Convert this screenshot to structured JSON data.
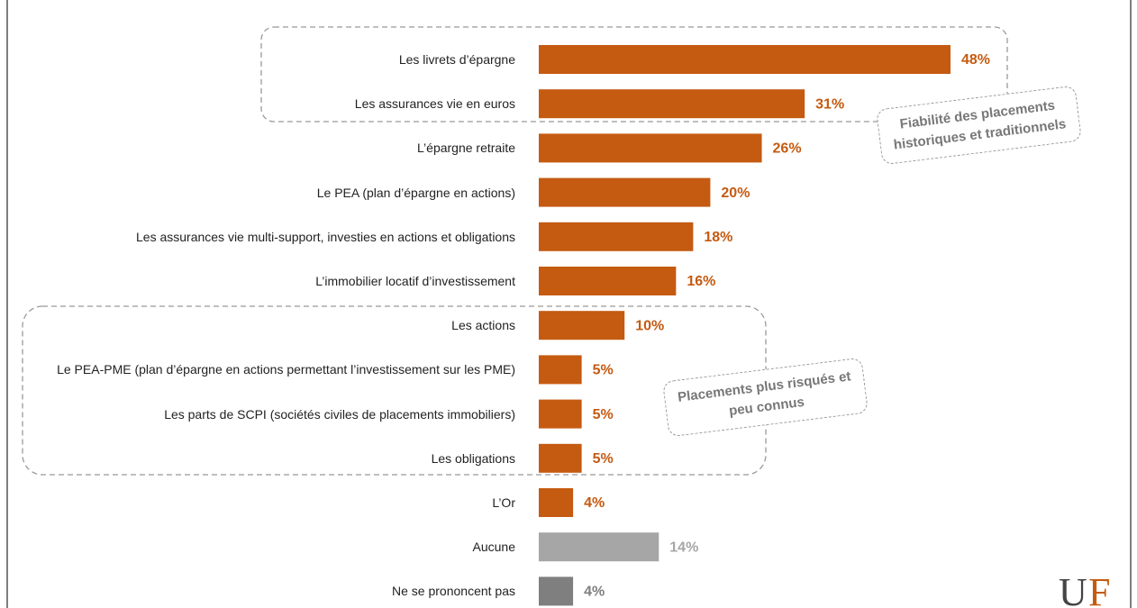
{
  "chart_data": {
    "type": "bar",
    "orientation": "horizontal",
    "categories": [
      "Les livrets d’épargne",
      "Les assurances vie en euros",
      "L’épargne retraite",
      "Le PEA (plan d’épargne en actions)",
      "Les assurances vie multi-support, investies en actions et obligations",
      "L’immobilier locatif d’investissement",
      "Les actions",
      "Le PEA-PME (plan d’épargne en actions permettant l’investissement sur les PME)",
      "Les parts de SCPI (sociétés civiles de placements immobiliers)",
      "Les obligations",
      "L’Or",
      "Aucune",
      "Ne se prononcent pas"
    ],
    "values": [
      48,
      31,
      26,
      20,
      18,
      16,
      10,
      5,
      5,
      5,
      4,
      14,
      4
    ],
    "value_labels": [
      "48%",
      "31%",
      "26%",
      "20%",
      "18%",
      "16%",
      "10%",
      "5%",
      "5%",
      "5%",
      "4%",
      "14%",
      "4%"
    ],
    "colors": [
      "#c55a11",
      "#c55a11",
      "#c55a11",
      "#c55a11",
      "#c55a11",
      "#c55a11",
      "#c55a11",
      "#c55a11",
      "#c55a11",
      "#c55a11",
      "#c55a11",
      "#a6a6a6",
      "#7f7f7f"
    ],
    "label_colors": [
      "#c55a11",
      "#c55a11",
      "#c55a11",
      "#c55a11",
      "#c55a11",
      "#c55a11",
      "#c55a11",
      "#c55a11",
      "#c55a11",
      "#c55a11",
      "#c55a11",
      "#a6a6a6",
      "#7f7f7f"
    ],
    "annotations": [
      {
        "lines": [
          "Fiabilité des placements",
          "historiques et traditionnels"
        ]
      },
      {
        "lines": [
          "Placements plus risqués et",
          "peu connus"
        ]
      }
    ]
  }
}
